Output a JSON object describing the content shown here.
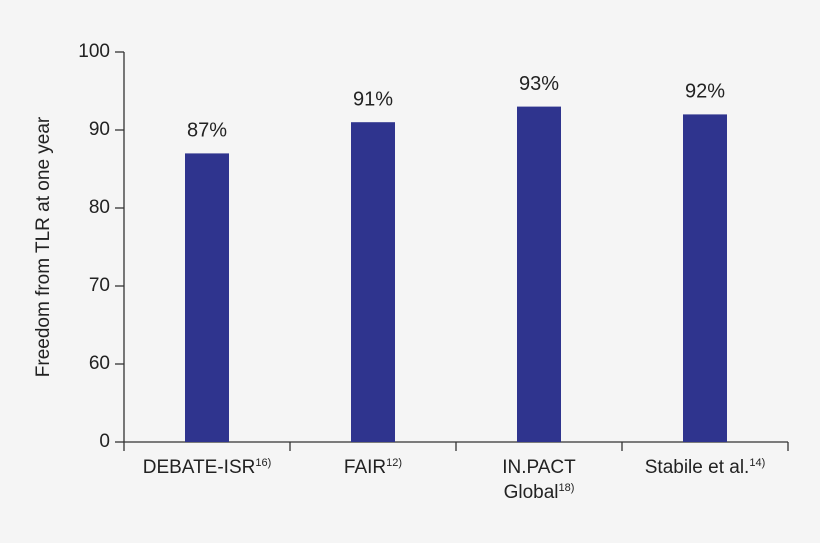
{
  "chart_data": {
    "type": "bar",
    "y_label": "Freedom from TLR at one year",
    "categories": [
      [
        "DEBATE-ISR"
      ],
      [
        "FAIR"
      ],
      [
        "IN.PACT",
        "Global"
      ],
      [
        "Stabile et al."
      ]
    ],
    "category_refs": [
      "16)",
      "12)",
      "18)",
      "14)"
    ],
    "values": [
      87,
      91,
      93,
      92
    ],
    "value_labels": [
      "87%",
      "91%",
      "93%",
      "92%"
    ],
    "color": "#2f348e",
    "ylim": [
      0,
      100
    ],
    "axis_break": [
      0,
      60
    ],
    "yticks": [
      0,
      60,
      70,
      80,
      90,
      100
    ],
    "grid": false
  }
}
